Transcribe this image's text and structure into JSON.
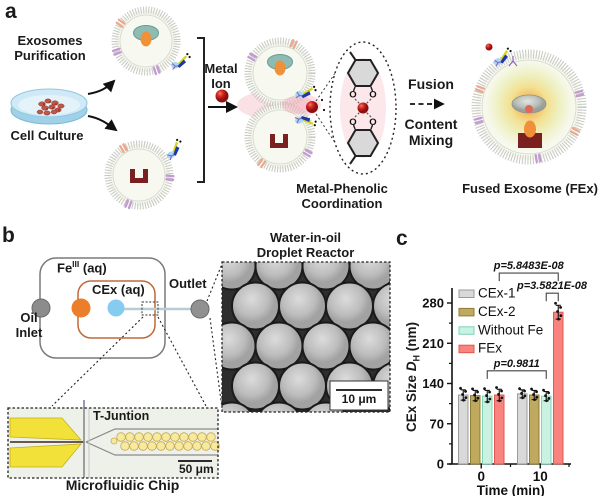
{
  "panel_a": {
    "label": "a",
    "exosomes_purification": "Exosomes\nPurification",
    "cell_culture": "Cell Culture",
    "metal_ion": "Metal\nIon",
    "metal_phenolic": "Metal-Phenolic\nCoordination",
    "fusion": "Fusion",
    "content_mixing": "Content\nMixing",
    "fused_exosome_caption": "Fused Exosome (FEx)",
    "oxygen_atom": "O"
  },
  "panel_b": {
    "label": "b",
    "fe_base": "Fe",
    "fe_sup": "III",
    "fe_suffix": " (aq)",
    "cex_phase": "CEx (aq)",
    "oil_inlet": "Oil\nInlet",
    "outlet": "Outlet",
    "reactor_title": "Water-in-oil\nDroplet Reactor",
    "t_junction": "T-Juntion",
    "scale_bar_droplet": "10 μm",
    "scale_bar_chip": "50 μm",
    "chip_caption": "Microfluidic Chip"
  },
  "panel_c": {
    "label": "c"
  },
  "chart_data": {
    "type": "bar",
    "title": "",
    "xlabel": "Time (min)",
    "ylabel": "CEx Size DH (nm)",
    "ylabel_parts": {
      "prefix": "CEx Size ",
      "symbol": "D",
      "subscript": "H",
      "suffix": " (nm)"
    },
    "categories": [
      "0",
      "10"
    ],
    "yticks": [
      0,
      70,
      140,
      210,
      280
    ],
    "ylim": [
      0,
      300
    ],
    "grid": false,
    "legend_position": "upper-left-inside",
    "series": [
      {
        "name": "CEx-1",
        "color": "#d9d9d9",
        "border": "#9b9b9b",
        "values": [
          120,
          122
        ],
        "errors": [
          9,
          7
        ]
      },
      {
        "name": "CEx-2",
        "color": "#bea95e",
        "border": "#8f7c35",
        "values": [
          119,
          120
        ],
        "errors": [
          9,
          8
        ]
      },
      {
        "name": "Without Fe",
        "color": "#c9f2e0",
        "border": "#7ed3b8",
        "values": [
          118,
          118
        ],
        "errors": [
          10,
          8
        ]
      },
      {
        "name": "FEx",
        "color": "#f9837f",
        "border": "#e2574f",
        "values": [
          120,
          264
        ],
        "errors": [
          10,
          12
        ]
      }
    ],
    "significance": [
      {
        "label": "p=5.8483E-08",
        "from": {
          "group": 0,
          "series": 3
        },
        "to": {
          "group": 1,
          "series": 3
        },
        "y_nm": 332
      },
      {
        "label": "p=3.5821E-08",
        "from": {
          "group": 1,
          "series": 2
        },
        "to": {
          "group": 1,
          "series": 3
        },
        "y_nm": 297
      },
      {
        "label": "p=0.9811",
        "from": {
          "group": 0,
          "series": 2
        },
        "to": {
          "group": 1,
          "series": 2
        },
        "y_nm": 162
      }
    ]
  }
}
